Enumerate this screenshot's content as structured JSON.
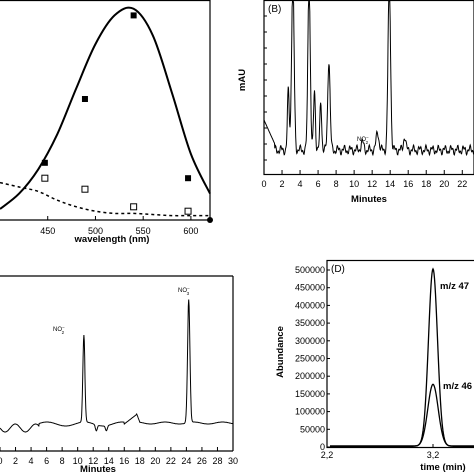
{
  "chart_data": [
    {
      "panel": "A",
      "type": "line",
      "xlabel": "wavelength (nm)",
      "xlim": [
        400,
        620
      ],
      "ylim": [
        0,
        1
      ],
      "xticks": [
        "450",
        "500",
        "550",
        "600"
      ],
      "series": [
        {
          "style": "solid-fit",
          "x": [
            400,
            420,
            440,
            460,
            480,
            500,
            520,
            540,
            560,
            580,
            600,
            620
          ],
          "values": [
            0.05,
            0.12,
            0.23,
            0.39,
            0.6,
            0.8,
            0.93,
            0.96,
            0.84,
            0.58,
            0.3,
            0.12
          ]
        },
        {
          "style": "filled-squares",
          "x": [
            447,
            489,
            540,
            597
          ],
          "values": [
            0.26,
            0.55,
            0.93,
            0.19
          ]
        },
        {
          "style": "dashed-fit",
          "x": [
            400,
            420,
            440,
            460,
            480,
            500,
            520,
            540,
            560,
            580,
            600,
            620
          ],
          "values": [
            0.17,
            0.15,
            0.13,
            0.09,
            0.06,
            0.04,
            0.03,
            0.03,
            0.025,
            0.02,
            0.02,
            0.02
          ]
        },
        {
          "style": "open-squares",
          "x": [
            447,
            489,
            540,
            597
          ],
          "values": [
            0.19,
            0.14,
            0.06,
            0.04
          ]
        }
      ]
    },
    {
      "panel": "B",
      "label": "(B)",
      "type": "line",
      "xlabel": "Minutes",
      "ylabel": "mAU",
      "xlim": [
        0,
        23
      ],
      "xticks": [
        "0",
        "2",
        "4",
        "6",
        "8",
        "10",
        "12",
        "14",
        "16",
        "18",
        "20",
        "22"
      ],
      "annotation": {
        "text": "NO",
        "sub": "2",
        "sup": "−"
      }
    },
    {
      "panel": "C",
      "type": "line",
      "xlabel": "Minutes",
      "xlim": [
        0,
        30
      ],
      "xticks": [
        "0",
        "2",
        "4",
        "6",
        "8",
        "10",
        "12",
        "14",
        "16",
        "18",
        "20",
        "22",
        "24",
        "26",
        "28",
        "30"
      ],
      "annotations": [
        {
          "text": "NO",
          "sub": "2",
          "sup": "−"
        },
        {
          "text": "NO",
          "sub": "3",
          "sup": "−"
        }
      ]
    },
    {
      "panel": "D",
      "label": "(D)",
      "type": "line",
      "xlabel": "time (min)",
      "ylabel": "Abundance",
      "ylim": [
        0,
        500000
      ],
      "yticks": [
        "0",
        "50000",
        "100000",
        "150000",
        "200000",
        "250000",
        "300000",
        "350000",
        "400000",
        "450000",
        "500000"
      ],
      "xticks": [
        "2,2",
        "3,2"
      ],
      "series": [
        {
          "name": "m/z 47",
          "peak_time": 3.2,
          "peak_abundance": 500000
        },
        {
          "name": "m/z 46",
          "peak_time": 3.2,
          "peak_abundance": 175000
        }
      ]
    }
  ]
}
